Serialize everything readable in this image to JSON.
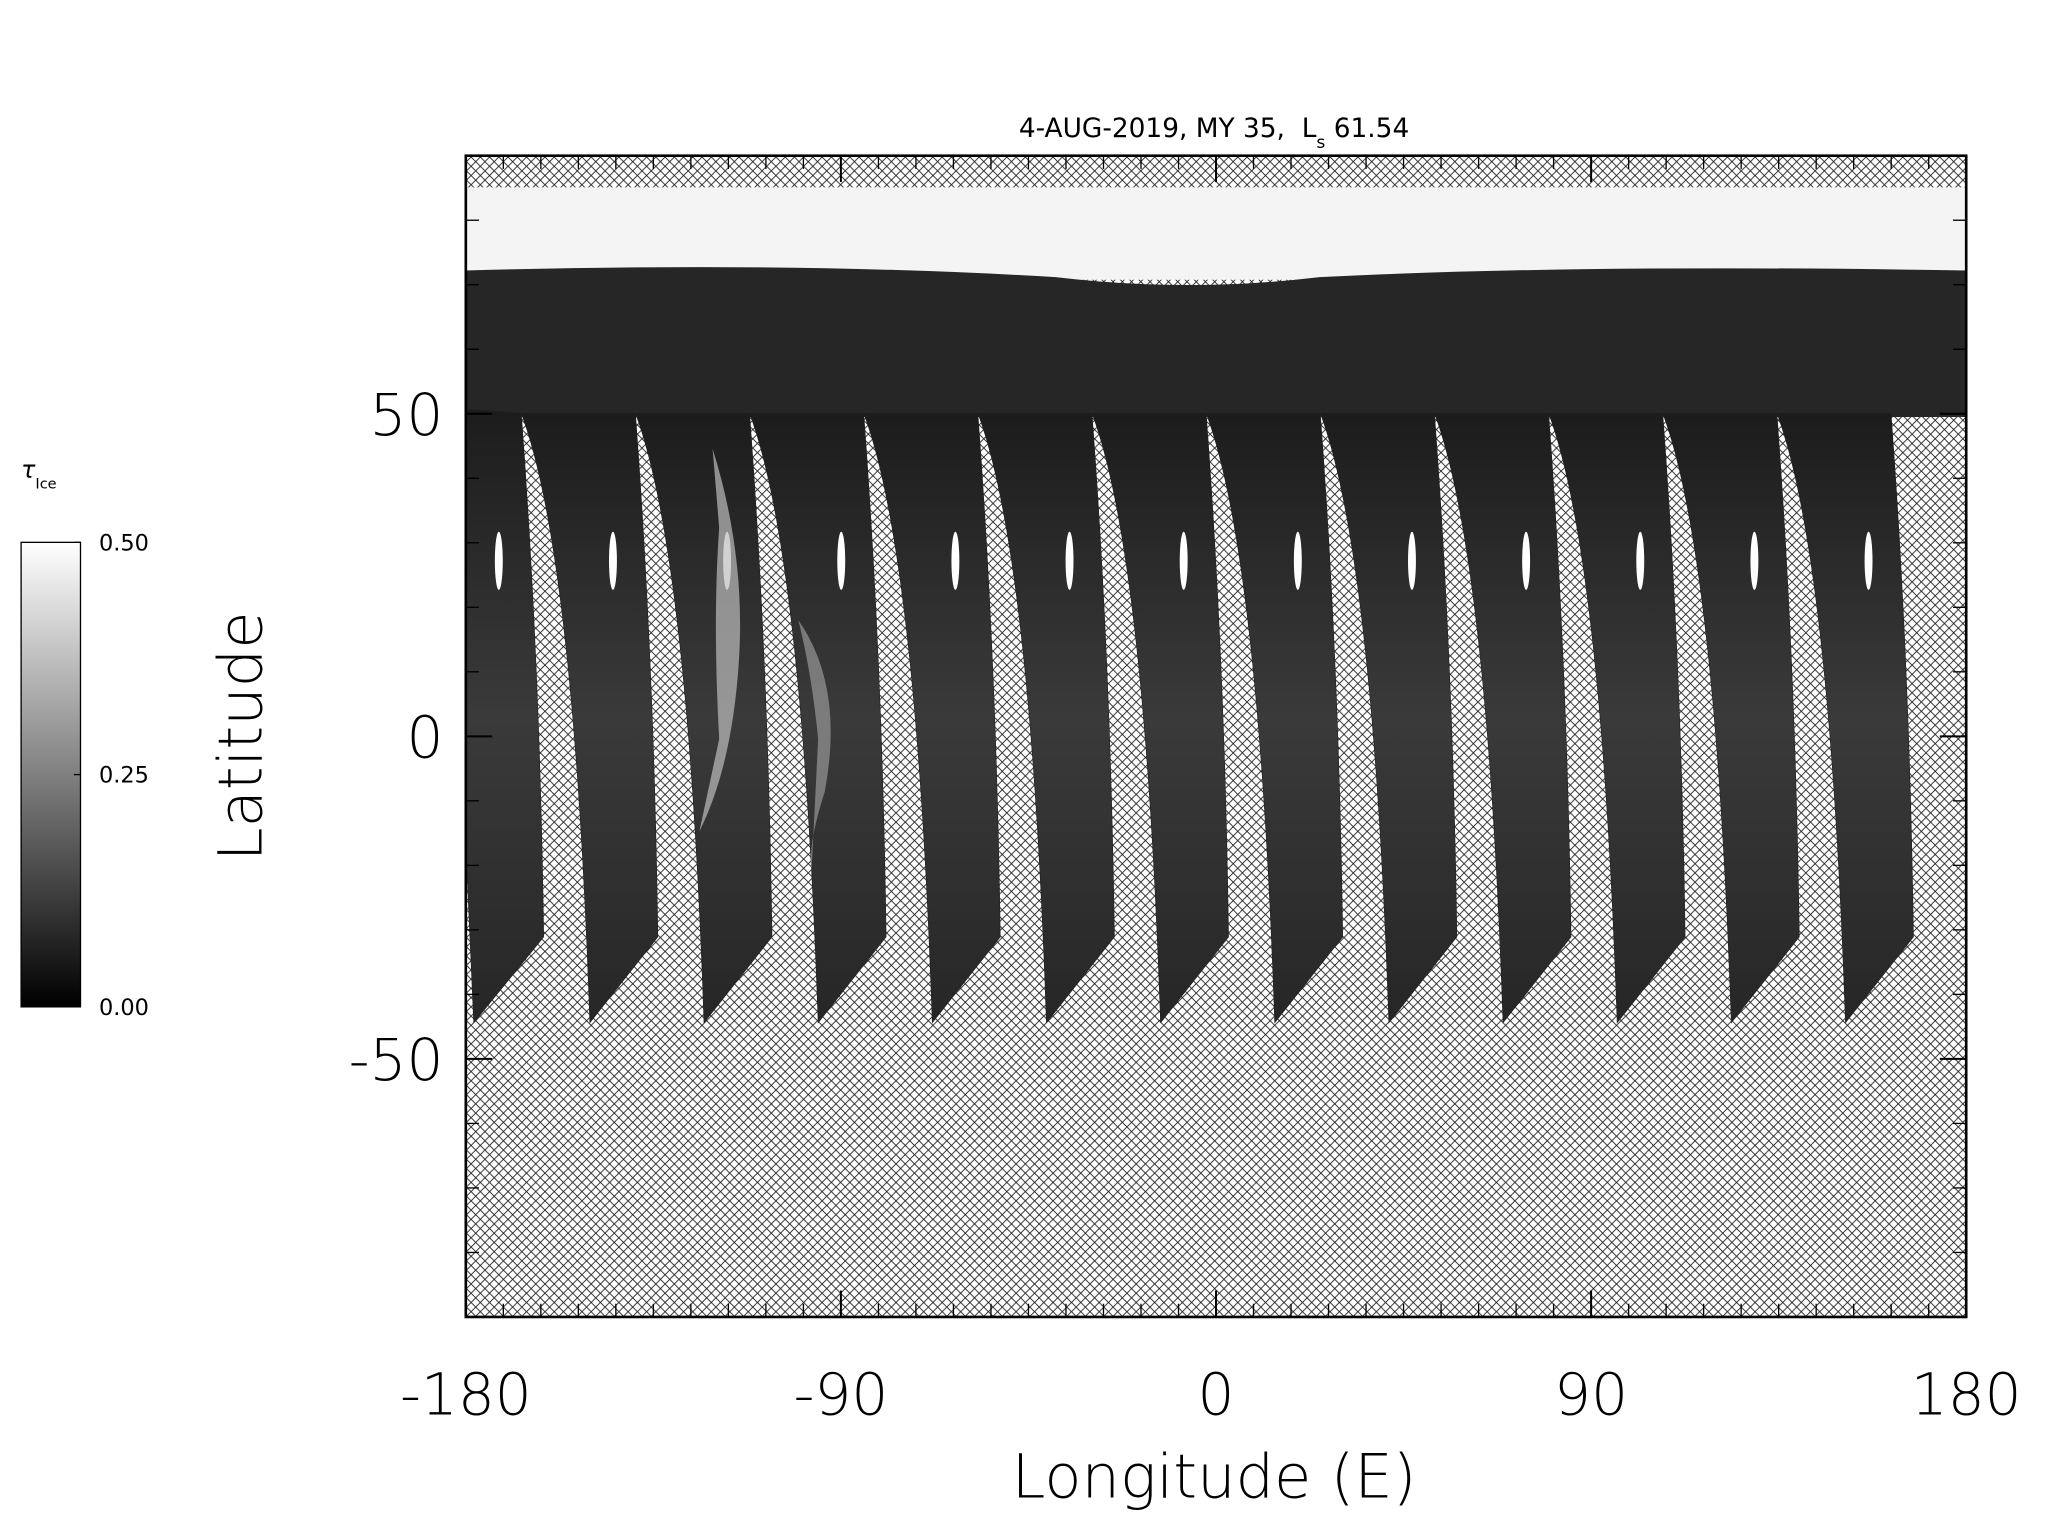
{
  "chart_data": {
    "type": "map",
    "title": [
      "4-AUG-2019, MY 35,  L",
      "s",
      " 61.54"
    ],
    "xlabel": "Longitude (E)",
    "ylabel": "Latitude",
    "xlim": [
      -180,
      180
    ],
    "xticks": [
      -180,
      -90,
      0,
      90,
      180
    ],
    "x_minor_step": 9,
    "ylim": [
      -90,
      90
    ],
    "yticks": [
      -50,
      0,
      50
    ],
    "y_minor_step": 10,
    "colorbar": {
      "label": [
        "τ",
        "Ice"
      ],
      "lim": [
        0,
        0.5
      ],
      "ticks": [
        {
          "value": 0,
          "label": "0.00"
        },
        {
          "value": 0.25,
          "label": "0.25"
        },
        {
          "value": 0.5,
          "label": "0.50"
        }
      ],
      "colors": [
        "#000000",
        "#ffffff"
      ]
    }
  }
}
